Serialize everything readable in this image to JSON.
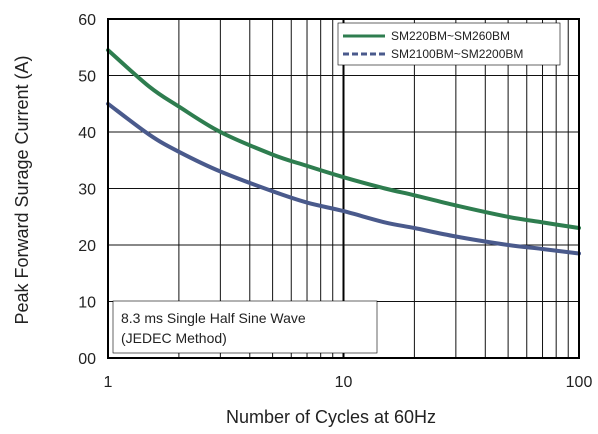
{
  "chart_data": {
    "type": "line",
    "xlabel": "Number of Cycles at 60Hz",
    "ylabel": "Peak Forward Surage Current (A)",
    "x_scale": "log",
    "xlim": [
      1,
      100
    ],
    "ylim": [
      0,
      60
    ],
    "x_ticks": [
      {
        "value": 1,
        "label": "1"
      },
      {
        "value": 10,
        "label": "10"
      },
      {
        "value": 100,
        "label": "100"
      }
    ],
    "y_ticks": [
      {
        "value": 0,
        "label": "00"
      },
      {
        "value": 10,
        "label": "10"
      },
      {
        "value": 20,
        "label": "20"
      },
      {
        "value": 30,
        "label": "30"
      },
      {
        "value": 40,
        "label": "40"
      },
      {
        "value": 50,
        "label": "50"
      },
      {
        "value": 60,
        "label": "60"
      }
    ],
    "grid": true,
    "legend_position": "top-right",
    "annotation": [
      "8.3 ms Single Half Sine Wave",
      "(JEDEC Method)"
    ],
    "series": [
      {
        "name": "SM220BM~SM260BM",
        "color": "#2e7d4f",
        "style": "solid",
        "x": [
          1,
          1.5,
          2,
          3,
          5,
          7,
          10,
          15,
          20,
          30,
          50,
          70,
          100
        ],
        "y": [
          54.5,
          48,
          44.5,
          40,
          36,
          34,
          32,
          30,
          28.8,
          27,
          25,
          24,
          23
        ]
      },
      {
        "name": "SM2100BM~SM2200BM",
        "color": "#4a5a8c",
        "style": "dashed",
        "x": [
          1,
          1.5,
          2,
          3,
          5,
          7,
          10,
          15,
          20,
          30,
          50,
          70,
          100
        ],
        "y": [
          45,
          39.5,
          36.5,
          33,
          29.5,
          27.5,
          26,
          24,
          23,
          21.5,
          20,
          19.3,
          18.5
        ]
      }
    ]
  }
}
